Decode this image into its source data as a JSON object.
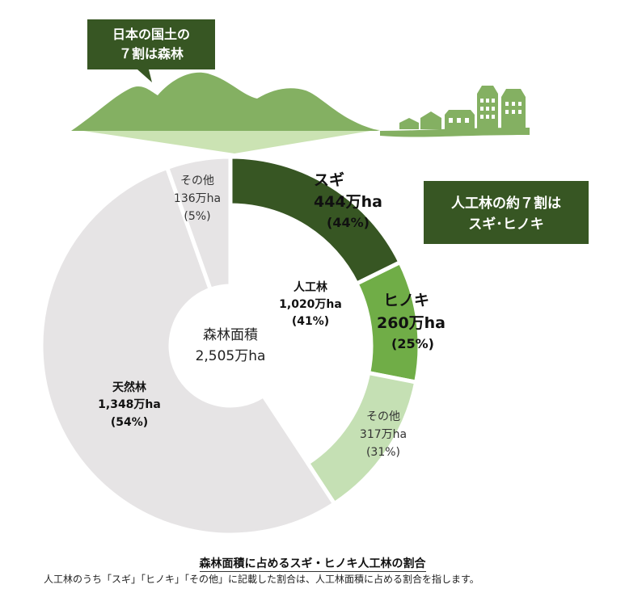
{
  "chart_data": {
    "type": "donut",
    "center_label": {
      "line1": "森林面積",
      "line2": "2,505万ha"
    },
    "inner_ring": [
      {
        "name": "人工林",
        "value": 1020,
        "value_label": "1,020万ha",
        "pct_label": "(41%)",
        "color": "#ffffff"
      },
      {
        "name": "天然林",
        "value": 1348,
        "value_label": "1,348万ha",
        "pct_label": "(54%)",
        "color": "#e6e4e5"
      },
      {
        "name": "その他",
        "value": 136,
        "value_label": "136万ha",
        "pct_label": "(5%)",
        "color": "#e6e4e5"
      }
    ],
    "plantation_breakdown": [
      {
        "name": "スギ",
        "value": 444,
        "value_label": "444万ha",
        "pct_label": "(44%)",
        "color": "#375623"
      },
      {
        "name": "ヒノキ",
        "value": 260,
        "value_label": "260万ha",
        "pct_label": "(25%)",
        "color": "#70ad47"
      },
      {
        "name": "その他",
        "value": 317,
        "value_label": "317万ha",
        "pct_label": "(31%)",
        "color": "#c5e0b4"
      }
    ]
  },
  "callouts": {
    "land_title_line1": "日本の国土の",
    "land_title_line2": "７割は森林",
    "plantation_title_line1": "人工林の約７割は",
    "plantation_title_line2": "スギ･ヒノキ"
  },
  "caption": {
    "title": "森林面積に占めるスギ・ヒノキ人工林の割合",
    "note": "人工林のうち「スギ」「ヒノキ」「その他」に記載した割合は、人工林面積に占める割合を指します。"
  },
  "colors": {
    "dark_green": "#375623",
    "mid_green": "#70ad47",
    "light_green": "#c5e0b4",
    "gray": "#e6e4e5",
    "mountain": "#84b062"
  }
}
